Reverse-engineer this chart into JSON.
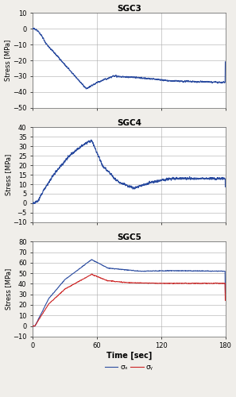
{
  "title_C3": "SGC3",
  "title_C4": "SGC4",
  "title_C5": "SGC5",
  "ylabel": "Stress [MPa]",
  "xlabel": "Time [sec]",
  "legend_label_x": "σₓ",
  "legend_label_y": "σᵧ",
  "xlim": [
    0,
    180
  ],
  "xticks": [
    0,
    60,
    120,
    180
  ],
  "C3_ylim": [
    -50,
    10
  ],
  "C3_yticks": [
    -50,
    -40,
    -30,
    -20,
    -10,
    0,
    10
  ],
  "C4_ylim": [
    -10,
    40
  ],
  "C4_yticks": [
    -10,
    -5,
    0,
    5,
    10,
    15,
    20,
    25,
    30,
    35,
    40
  ],
  "C5_ylim": [
    -10,
    80
  ],
  "C5_yticks": [
    -10,
    0,
    10,
    20,
    30,
    40,
    50,
    60,
    70,
    80
  ],
  "line_color_blue": "#2b4ca0",
  "line_color_red": "#cc2222",
  "grid_color": "#aaaaaa",
  "background_color": "#ffffff",
  "fig_bg": "#f0eeea"
}
